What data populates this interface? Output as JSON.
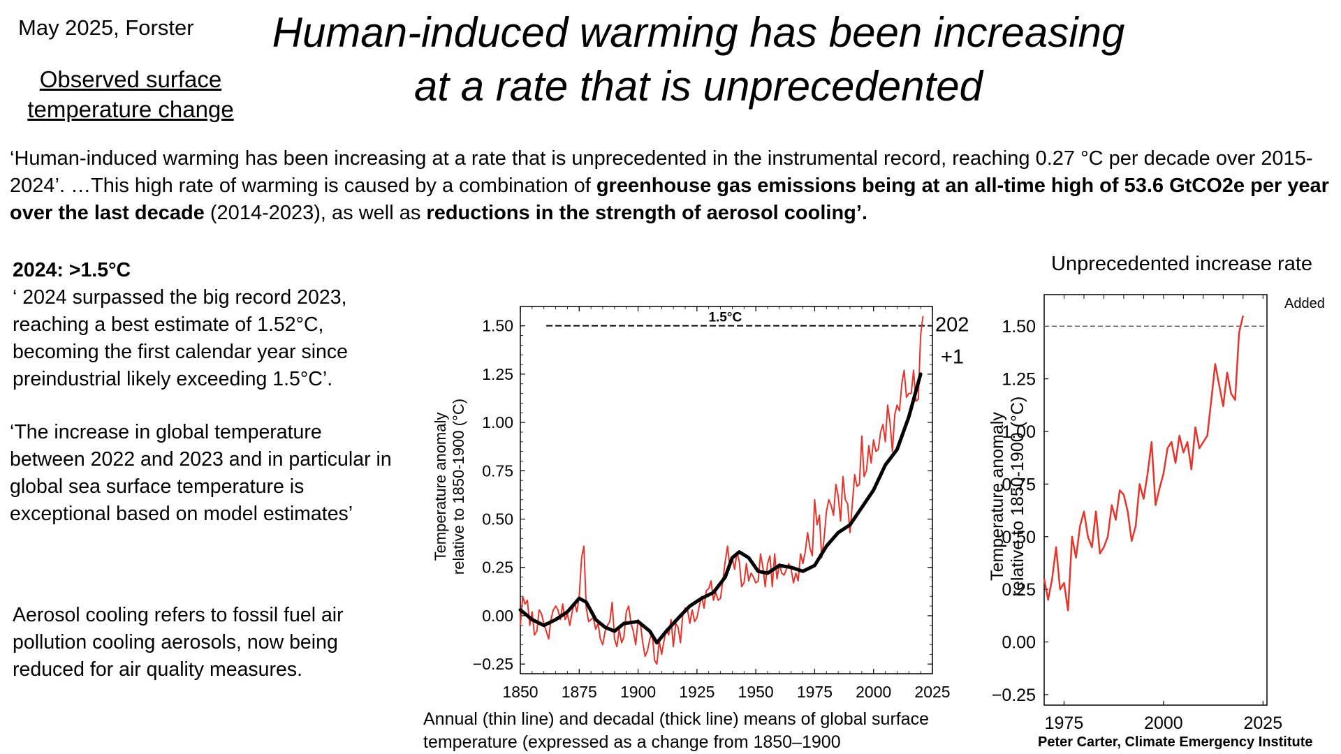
{
  "meta": "May 2025, Forster",
  "title_line1": "Human-induced warming has been increasing",
  "title_line2": "at a rate that is unprecedented",
  "subheading_line1": "Observed surface",
  "subheading_line2": "temperature change",
  "quote": {
    "part1": "‘Human-induced warming has been increasing at a rate that is unprecedented in the instrumental record,  reaching 0.27 °C per decade over 2015-2024’.  …This high rate of warming is caused by a combination of ",
    "bold1": "greenhouse gas emissions being at an all-time high of 53.6 GtCO2e per year over the last decade",
    "part2": " (2014-2023), as well as ",
    "bold2": "reductions in the strength of aerosol cooling’."
  },
  "left_panel": {
    "record_heading": "2024: >1.5°C",
    "record_text": "‘ 2024 surpassed the big record 2023, reaching a best estimate of 1.52°C, becoming the first calendar year since preindustrial likely exceeding 1.5°C’.",
    "increase_text": "‘The increase in global temperature between 2022 and 2023 and in particular in global sea surface temperature is exceptional based on model estimates’",
    "aerosol_text": "Aerosol cooling refers to fossil fuel air pollution cooling aerosols, now being reduced for air quality measures."
  },
  "caption": "Annual (thin line) and decadal (thick line) means of global surface temperature (expressed as a change from  1850–1900",
  "right_title": "Unprecedented increase rate",
  "credit": "Peter Carter, Climate Emergency Institute",
  "colors": {
    "annual_line": "#e8332a",
    "decadal_line": "#000000",
    "threshold_line": "#000000"
  },
  "chart_data": [
    {
      "type": "line",
      "xlabel": "",
      "ylabel": "Temperature anomaly relative to 1850-1900 (°C)",
      "xlim": [
        1850,
        2025
      ],
      "ylim": [
        -0.3,
        1.6
      ],
      "xticks": [
        "1850",
        "1875",
        "1900",
        "1925",
        "1950",
        "1975",
        "2000",
        "2025"
      ],
      "yticks": [
        "−0.25",
        "0.00",
        "0.25",
        "0.50",
        "0.75",
        "1.00",
        "1.25",
        "1.50"
      ],
      "threshold": {
        "value": 1.5,
        "label": "1.5°C",
        "x_start": 1861
      },
      "annotation": [
        "202",
        "+1"
      ],
      "series": [
        {
          "style": "annual (thin line)",
          "x_start": 1850,
          "values": [
            -0.05,
            0.1,
            0.06,
            0.08,
            -0.05,
            0.02,
            -0.1,
            -0.08,
            0.03,
            0.01,
            -0.04,
            -0.08,
            -0.12,
            -0.02,
            0.03,
            0.05,
            0.03,
            -0.02,
            0.06,
            -0.02,
            0.01,
            -0.05,
            0.02,
            0.07,
            0.02,
            0.1,
            0.3,
            0.36,
            0.04,
            -0.03,
            -0.02,
            -0.01,
            -0.07,
            -0.04,
            -0.12,
            -0.15,
            -0.08,
            -0.05,
            -0.03,
            0.07,
            -0.12,
            -0.16,
            -0.07,
            -0.14,
            -0.11,
            0.02,
            0.05,
            -0.04,
            -0.08,
            -0.15,
            -0.02,
            -0.04,
            -0.14,
            -0.21,
            -0.18,
            -0.12,
            -0.09,
            -0.23,
            -0.25,
            -0.13,
            -0.2,
            -0.13,
            -0.07,
            -0.1,
            -0.02,
            -0.16,
            -0.04,
            -0.06,
            -0.14,
            0.01,
            0.04,
            0.03,
            -0.04,
            0.03,
            -0.03,
            -0.01,
            0.05,
            0.1,
            0.04,
            0.13,
            0.14,
            0.18,
            0.08,
            0.12,
            0.08,
            0.09,
            0.18,
            0.28,
            0.36,
            0.25,
            0.3,
            0.24,
            0.33,
            0.28,
            0.15,
            0.17,
            0.27,
            0.18,
            0.22,
            0.2,
            0.17,
            0.18,
            0.32,
            0.25,
            0.15,
            0.27,
            0.31,
            0.15,
            0.32,
            0.19,
            0.27,
            0.22,
            0.21,
            0.24,
            0.27,
            0.24,
            0.17,
            0.22,
            0.18,
            0.32,
            0.27,
            0.33,
            0.43,
            0.35,
            0.31,
            0.6,
            0.47,
            0.52,
            0.3,
            0.4,
            0.54,
            0.6,
            0.57,
            0.52,
            0.68,
            0.62,
            0.49,
            0.72,
            0.6,
            0.58,
            0.43,
            0.58,
            0.73,
            0.67,
            0.68,
            0.93,
            0.72,
            0.75,
            0.88,
            0.79,
            0.91,
            0.85,
            0.86,
            0.95,
            0.99,
            0.9,
            1.09,
            1.0,
            0.85,
            1.04,
            1.09,
            1.06,
            1.2,
            1.27,
            1.13,
            1.15,
            1.15,
            1.27,
            1.11,
            1.12,
            1.45,
            1.55
          ],
          "color": "#e8332a"
        },
        {
          "style": "decadal (thick line)",
          "x": [
            1850,
            1855,
            1860,
            1865,
            1870,
            1875,
            1878,
            1882,
            1886,
            1890,
            1894,
            1900,
            1905,
            1908,
            1912,
            1918,
            1922,
            1927,
            1932,
            1937,
            1940,
            1943,
            1947,
            1951,
            1955,
            1960,
            1965,
            1970,
            1975,
            1980,
            1985,
            1990,
            1995,
            2000,
            2005,
            2010,
            2015,
            2020
          ],
          "y": [
            0.03,
            -0.02,
            -0.05,
            -0.02,
            0.02,
            0.09,
            0.07,
            -0.02,
            -0.06,
            -0.08,
            -0.04,
            -0.03,
            -0.08,
            -0.14,
            -0.08,
            0.0,
            0.05,
            0.09,
            0.12,
            0.2,
            0.3,
            0.33,
            0.3,
            0.23,
            0.22,
            0.26,
            0.25,
            0.23,
            0.26,
            0.36,
            0.43,
            0.47,
            0.56,
            0.65,
            0.78,
            0.86,
            1.03,
            1.25
          ],
          "color": "#000000"
        }
      ]
    },
    {
      "type": "line",
      "xlabel": "",
      "ylabel": "Temperature anomaly relative to 1850-1900 (°C)",
      "xlim": [
        1970,
        2026
      ],
      "ylim": [
        -0.3,
        1.65
      ],
      "xticks": [
        "1975",
        "2000",
        "2025"
      ],
      "yticks": [
        "−0.25",
        "0.00",
        "0.25",
        "0.50",
        "0.75",
        "1.00",
        "1.25",
        "1.50"
      ],
      "threshold": {
        "value": 1.5,
        "label": ""
      },
      "annotation": "Added",
      "series": [
        {
          "x_start": 1970,
          "values": [
            0.3,
            0.2,
            0.3,
            0.45,
            0.25,
            0.28,
            0.15,
            0.5,
            0.4,
            0.55,
            0.62,
            0.5,
            0.45,
            0.62,
            0.42,
            0.45,
            0.5,
            0.65,
            0.58,
            0.72,
            0.7,
            0.62,
            0.48,
            0.55,
            0.75,
            0.68,
            0.8,
            0.95,
            0.65,
            0.73,
            0.8,
            0.92,
            0.95,
            0.85,
            0.98,
            0.9,
            0.95,
            0.82,
            1.02,
            0.92,
            0.95,
            0.98,
            1.15,
            1.32,
            1.22,
            1.12,
            1.28,
            1.18,
            1.15,
            1.47,
            1.55
          ],
          "color": "#e8332a"
        }
      ]
    }
  ]
}
